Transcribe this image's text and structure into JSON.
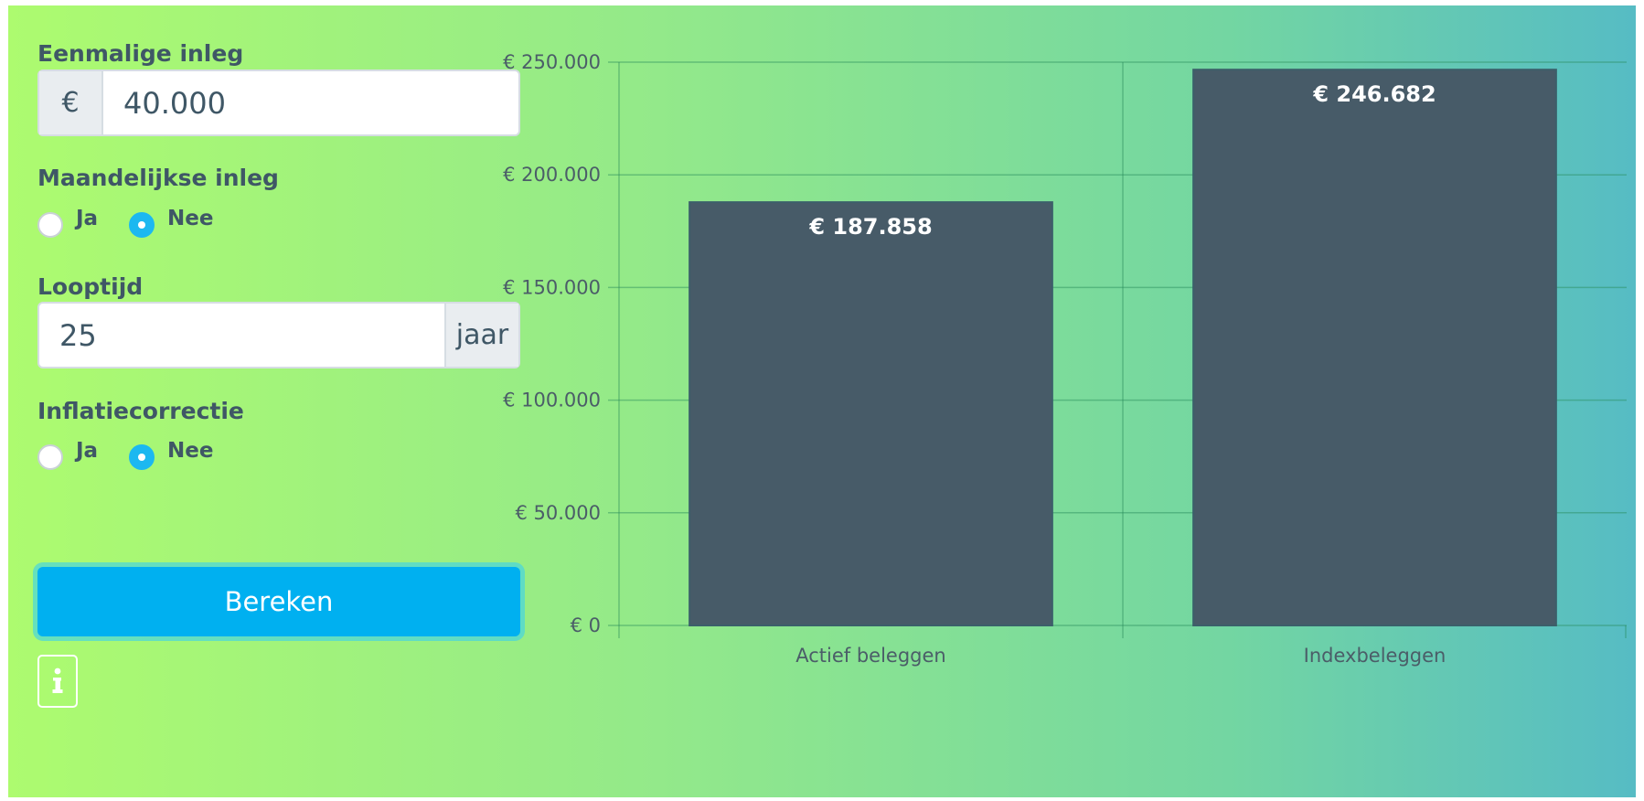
{
  "form": {
    "single_deposit": {
      "label": "Eenmalige inleg",
      "currency": "€",
      "value": "40.000"
    },
    "monthly_deposit": {
      "label": "Maandelijkse inleg",
      "options": [
        "Ja",
        "Nee"
      ],
      "selected": "Nee"
    },
    "duration": {
      "label": "Looptijd",
      "value": "25",
      "unit": "jaar"
    },
    "inflation": {
      "label": "Inflatiecorrectie",
      "options": [
        "Ja",
        "Nee"
      ],
      "selected": "Nee"
    },
    "calculate_label": "Bereken",
    "info_icon": "info-icon"
  },
  "chart_data": {
    "type": "bar",
    "categories": [
      "Actief beleggen",
      "Indexbeleggen"
    ],
    "values": [
      187858,
      246682
    ],
    "value_labels": [
      "€  187.858",
      "€  246.682"
    ],
    "y_ticks": [
      0,
      50000,
      100000,
      150000,
      200000,
      250000
    ],
    "y_tick_labels": [
      "€  0",
      "€  50.000",
      "€  100.000",
      "€  150.000",
      "€  200.000",
      "€  250.000"
    ],
    "ylim": [
      0,
      250000
    ],
    "grid": true,
    "bar_color": "#475b68"
  }
}
